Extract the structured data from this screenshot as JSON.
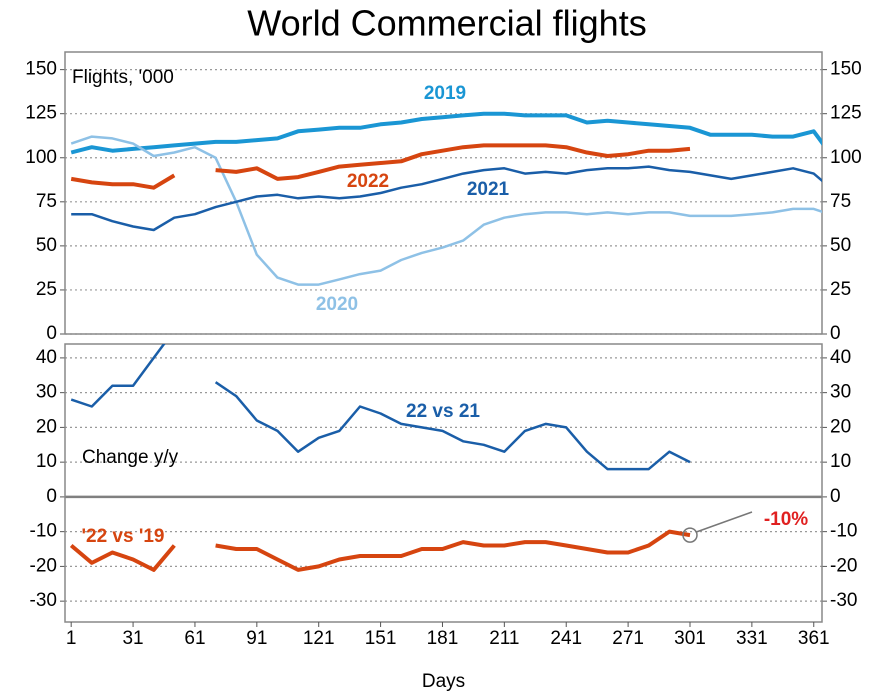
{
  "chart_data": [
    {
      "type": "line",
      "title": "World Commercial flights",
      "ylabel": "Flights, '000",
      "x": [
        1,
        11,
        21,
        31,
        41,
        51,
        61,
        71,
        81,
        91,
        101,
        111,
        121,
        131,
        141,
        151,
        161,
        171,
        181,
        191,
        201,
        211,
        221,
        231,
        241,
        251,
        261,
        271,
        281,
        291,
        301,
        311,
        321,
        331,
        341,
        351,
        361,
        366
      ],
      "xlim": [
        -2,
        365
      ],
      "ylim": [
        0,
        160
      ],
      "yticks": [
        0,
        25,
        50,
        75,
        100,
        125,
        150
      ],
      "grid": true,
      "series": [
        {
          "name": "2019",
          "color": "#1a96d4",
          "values": [
            103,
            106,
            104,
            105,
            106,
            107,
            108,
            109,
            109,
            110,
            111,
            115,
            116,
            117,
            117,
            119,
            120,
            122,
            123,
            124,
            125,
            125,
            124,
            124,
            124,
            120,
            121,
            120,
            119,
            118,
            117,
            113,
            113,
            113,
            112,
            112,
            115,
            107
          ]
        },
        {
          "name": "2020",
          "color": "#8ec1e6",
          "values": [
            108,
            112,
            111,
            108,
            101,
            103,
            106,
            100,
            75,
            45,
            32,
            28,
            28,
            31,
            34,
            36,
            42,
            46,
            49,
            53,
            62,
            66,
            68,
            69,
            69,
            68,
            69,
            68,
            69,
            69,
            67,
            67,
            67,
            68,
            69,
            71,
            71,
            69
          ]
        },
        {
          "name": "2021",
          "color": "#1a5ea8",
          "values": [
            68,
            68,
            64,
            61,
            59,
            66,
            68,
            72,
            75,
            78,
            79,
            77,
            78,
            77,
            78,
            80,
            83,
            85,
            88,
            91,
            93,
            94,
            91,
            92,
            91,
            93,
            94,
            94,
            95,
            93,
            92,
            90,
            88,
            90,
            92,
            94,
            91,
            86
          ]
        },
        {
          "name": "2022",
          "color": "#d64510",
          "values": [
            88,
            86,
            85,
            85,
            83,
            90,
            null,
            93,
            92,
            94,
            88,
            89,
            92,
            95,
            96,
            97,
            98,
            102,
            104,
            106,
            107,
            107,
            107,
            107,
            106,
            103,
            101,
            102,
            104,
            104,
            105,
            null,
            null,
            null,
            null,
            null,
            null,
            null
          ]
        }
      ]
    },
    {
      "type": "line",
      "ylabel": "Change y/y",
      "xlabel": "Days",
      "x": [
        1,
        11,
        21,
        31,
        41,
        51,
        61,
        71,
        81,
        91,
        101,
        111,
        121,
        131,
        141,
        151,
        161,
        171,
        181,
        191,
        201,
        211,
        221,
        231,
        241,
        251,
        261,
        271,
        281,
        291,
        301,
        311,
        321,
        331,
        341,
        351,
        361,
        366
      ],
      "xlim": [
        -2,
        365
      ],
      "xticks": [
        1,
        31,
        61,
        91,
        121,
        151,
        181,
        211,
        241,
        271,
        301,
        331,
        361
      ],
      "ylim": [
        -36,
        44
      ],
      "yticks": [
        -30,
        -20,
        -10,
        0,
        10,
        20,
        30,
        40
      ],
      "grid": true,
      "series": [
        {
          "name": "22 vs 21",
          "color": "#1a5ea8",
          "values": [
            28,
            26,
            32,
            32,
            40,
            48,
            null,
            33,
            29,
            22,
            19,
            13,
            17,
            19,
            26,
            24,
            21,
            20,
            19,
            16,
            15,
            13,
            19,
            21,
            20,
            13,
            8,
            8,
            8,
            13,
            10,
            null,
            null,
            null,
            null,
            null,
            null,
            null
          ]
        },
        {
          "name": "'22 vs '19",
          "color": "#d64510",
          "values": [
            -14,
            -19,
            -16,
            -18,
            -21,
            -14,
            null,
            -14,
            -15,
            -15,
            -18,
            -21,
            -20,
            -18,
            -17,
            -17,
            -17,
            -15,
            -15,
            -13,
            -14,
            -14,
            -13,
            -13,
            -14,
            -15,
            -16,
            -16,
            -14,
            -10,
            -11,
            null,
            null,
            null,
            null,
            null,
            null,
            null
          ]
        }
      ],
      "annotation": "-10%"
    }
  ]
}
